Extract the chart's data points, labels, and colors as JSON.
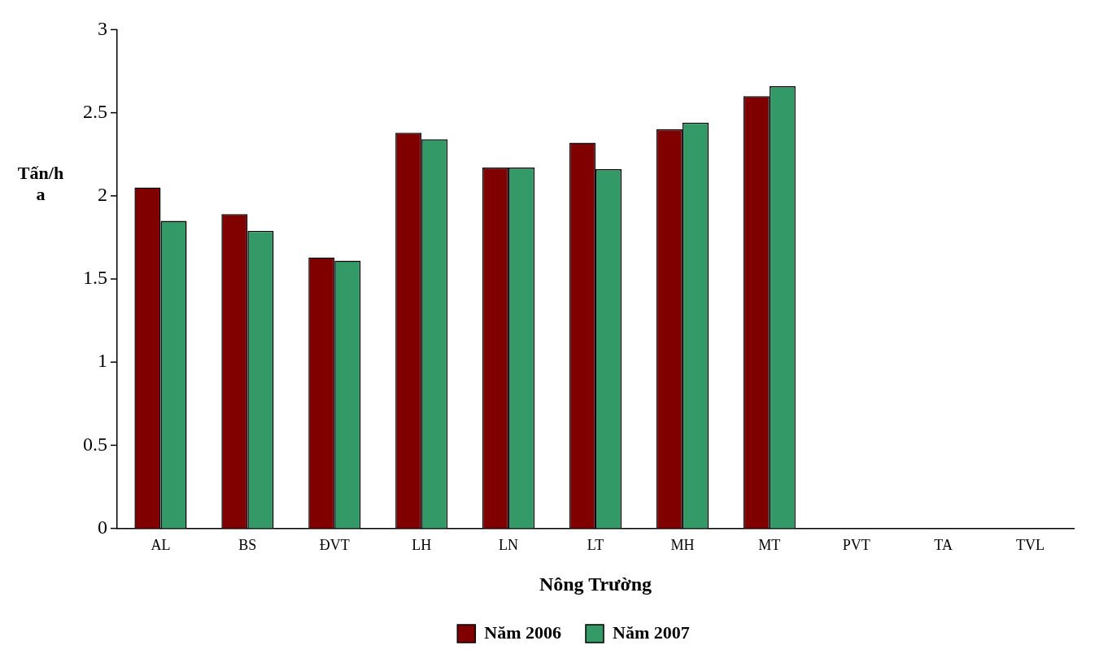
{
  "chart_data": {
    "type": "bar",
    "xlabel": "Nông Trường",
    "ylabel": "Tấn/ha",
    "categories": [
      "AL",
      "BS",
      "ĐVT",
      "LH",
      "LN",
      "LT",
      "MH",
      "MT",
      "PVT",
      "TA",
      "TVL"
    ],
    "series": [
      {
        "name": "Năm 2006",
        "color": "#800000",
        "values": [
          2.05,
          1.89,
          1.63,
          2.38,
          2.17,
          2.32,
          2.4,
          2.6,
          null,
          null,
          null
        ]
      },
      {
        "name": "Năm 2007",
        "color": "#339966",
        "values": [
          1.85,
          1.79,
          1.61,
          2.34,
          2.17,
          2.16,
          2.44,
          2.66,
          null,
          null,
          null
        ]
      }
    ],
    "ylim": [
      0,
      3
    ],
    "yticks": [
      0,
      0.5,
      1,
      1.5,
      2,
      2.5,
      3
    ],
    "grid": false,
    "legend": "bottom"
  }
}
